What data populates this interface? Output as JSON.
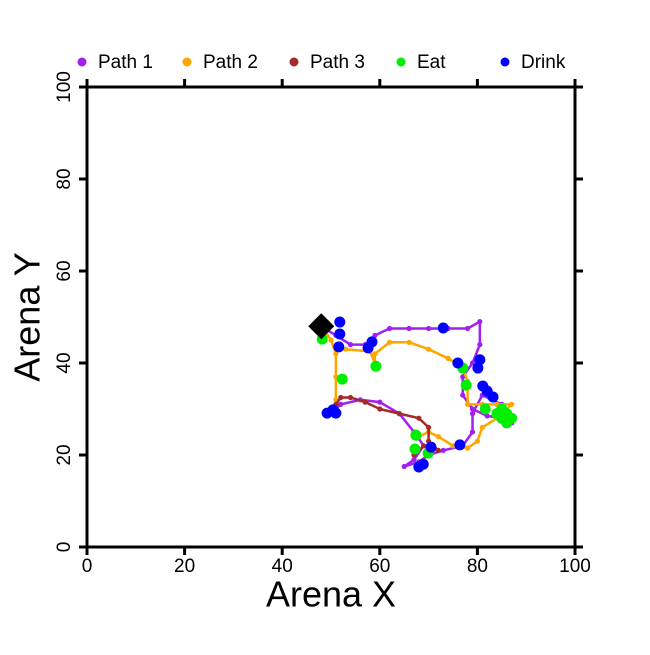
{
  "chart_data": {
    "type": "scatter",
    "xlabel": "Arena X",
    "ylabel": "Arena Y",
    "xlim": [
      0,
      100
    ],
    "ylim": [
      0,
      100
    ],
    "xticks": [
      0,
      20,
      40,
      60,
      80,
      100
    ],
    "yticks": [
      0,
      20,
      40,
      60,
      80,
      100
    ],
    "legend": "top",
    "series": [
      {
        "name": "Path 1",
        "color": "#a020f0",
        "mode": "path",
        "x": [
          48,
          51,
          54,
          57,
          59,
          62,
          66,
          70,
          74,
          78,
          80.5,
          80.5,
          79,
          77,
          77,
          79,
          82,
          85,
          87,
          85,
          81,
          79,
          79,
          77,
          73,
          70,
          68,
          65,
          67,
          69,
          67,
          64,
          60,
          56,
          52,
          50
        ],
        "y": [
          48,
          46,
          44,
          44,
          46,
          47.5,
          47.5,
          47.5,
          47.5,
          47.5,
          49,
          44,
          40,
          37,
          33,
          30,
          28.5,
          28,
          27,
          31,
          33,
          29,
          25,
          22,
          21,
          20,
          18.5,
          17.5,
          19,
          22,
          25,
          29,
          31.5,
          32,
          31,
          29
        ]
      },
      {
        "name": "Path 2",
        "color": "#ffa500",
        "mode": "path",
        "x": [
          48,
          50,
          51,
          51,
          51,
          51,
          53,
          58,
          59,
          59,
          62,
          66,
          70,
          74,
          77,
          78,
          78,
          81,
          84,
          87,
          84,
          81,
          80,
          78,
          75,
          72,
          70,
          68
        ],
        "y": [
          48,
          45,
          42,
          37,
          32,
          43,
          43,
          42.5,
          40,
          42,
          44.5,
          44.5,
          43,
          41,
          39,
          36,
          31,
          31,
          31,
          31,
          28,
          26,
          23,
          21.5,
          22,
          24,
          25,
          24
        ]
      },
      {
        "name": "Path 3",
        "color": "#a52a2a",
        "mode": "path",
        "x": [
          51,
          52,
          54,
          57,
          60,
          64,
          68,
          70,
          70,
          72,
          69,
          67
        ],
        "y": [
          31,
          32.5,
          32.5,
          31.5,
          30,
          29,
          28,
          26,
          23,
          21,
          22,
          20
        ]
      },
      {
        "name": "Eat",
        "color": "#00ee00",
        "mode": "points",
        "x": [
          48.2,
          52.3,
          59.2,
          77,
          77.7,
          81.6,
          84,
          85,
          86,
          87,
          86,
          85,
          67.4,
          67.2,
          69.9
        ],
        "y": [
          45.2,
          36.5,
          39.3,
          38.9,
          35.2,
          30,
          29,
          30,
          29,
          28,
          27,
          28,
          24.3,
          21.3,
          20.4
        ]
      },
      {
        "name": "Drink",
        "color": "#0000ff",
        "mode": "points",
        "x": [
          51.8,
          51.8,
          51.6,
          58.4,
          57.6,
          73,
          76,
          80.1,
          80.5,
          81.1,
          82,
          83.2,
          76.4,
          70.5,
          68.9,
          68,
          49.2,
          50.4,
          51
        ],
        "y": [
          48.9,
          46.3,
          43.5,
          44.6,
          43.3,
          47.6,
          40,
          38.9,
          40.7,
          35,
          33.9,
          32.6,
          22.2,
          21.7,
          18,
          17.4,
          29.1,
          29.8,
          29.1
        ]
      }
    ],
    "marker": {
      "x": 48,
      "y": 48,
      "color": "#000000",
      "shape": "diamond"
    }
  }
}
